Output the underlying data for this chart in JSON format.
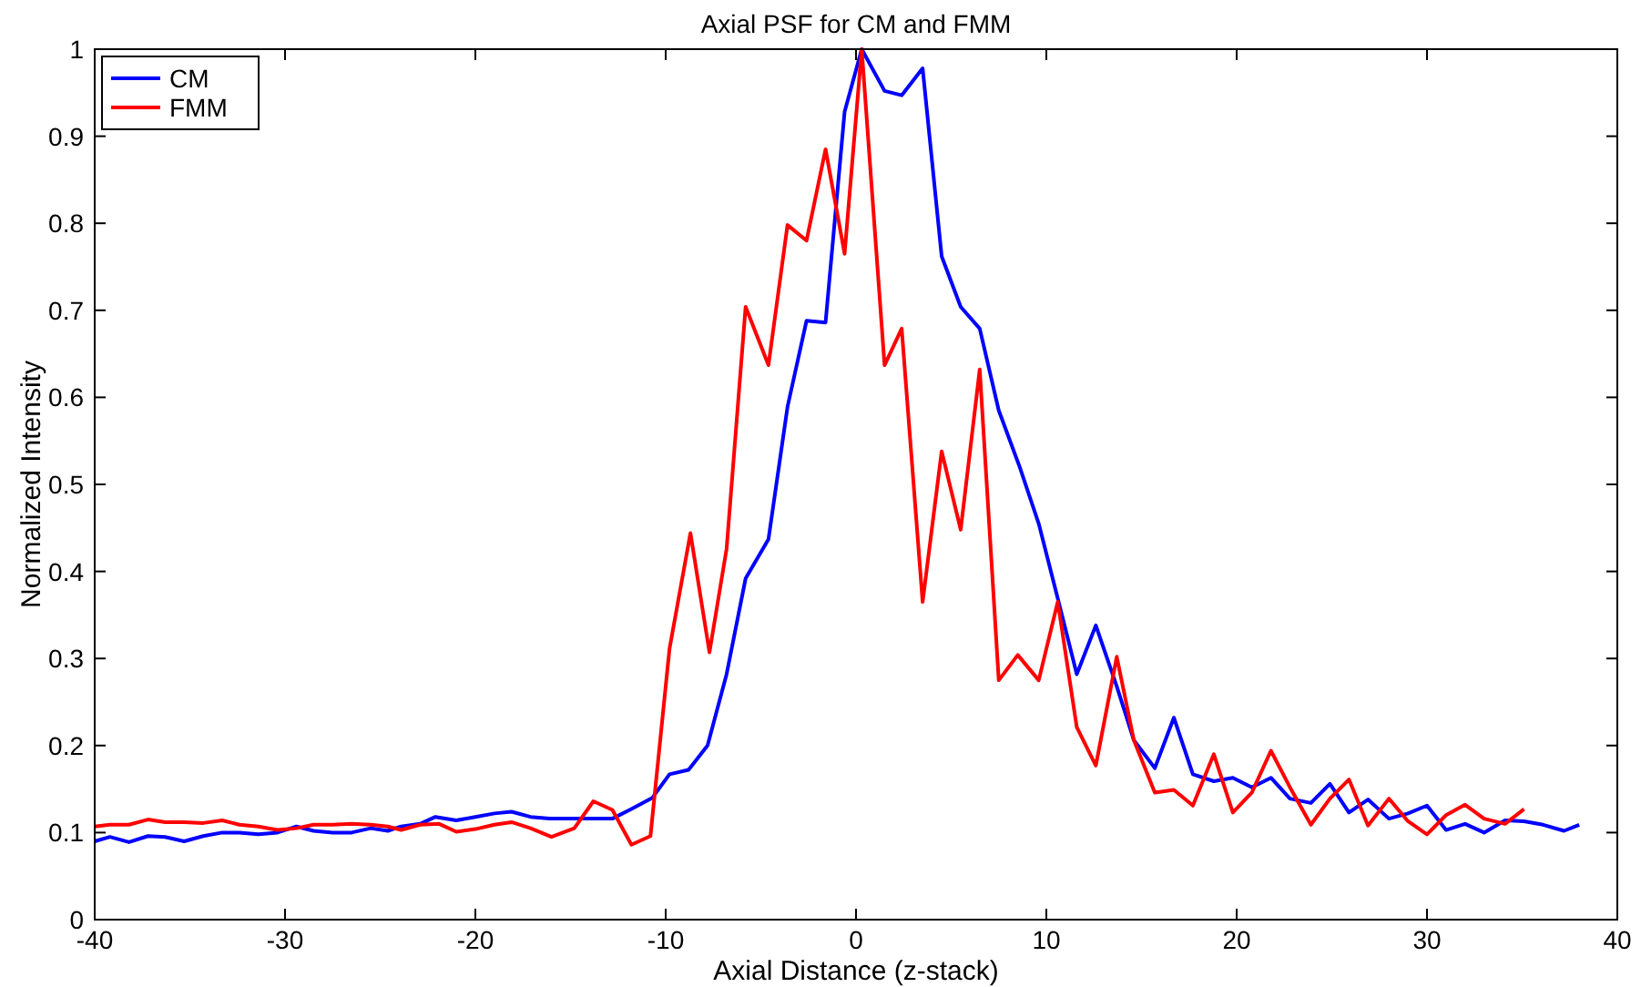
{
  "chart_data": {
    "type": "line",
    "title": "Axial PSF for CM and FMM",
    "xlabel": "Axial Distance (z-stack)",
    "ylabel": "Normalized Intensity",
    "xlim": [
      -40,
      40
    ],
    "xticks": [
      -40,
      -30,
      -20,
      -10,
      0,
      10,
      20,
      30,
      40
    ],
    "ylim": [
      0,
      1
    ],
    "yticks": [
      0,
      0.1,
      0.2,
      0.3,
      0.4,
      0.5,
      0.6,
      0.7,
      0.8,
      0.9,
      1
    ],
    "grid": false,
    "legend": "top left",
    "marker": "none",
    "line_style": "solid",
    "series": [
      {
        "name": "CM",
        "color": "#0000ff",
        "x": [
          -40,
          -39.2,
          -38.2,
          -37.2,
          -36.3,
          -35.3,
          -34.3,
          -33.3,
          -32.4,
          -31.4,
          -30.4,
          -29.4,
          -28.5,
          -27.5,
          -26.5,
          -25.5,
          -24.6,
          -23.9,
          -22.9,
          -22.1,
          -21,
          -20,
          -19,
          -18.1,
          -17.1,
          -16.1,
          -15.1,
          -14.2,
          -12.8,
          -11.8,
          -10.7,
          -9.8,
          -8.8,
          -7.8,
          -6.8,
          -5.8,
          -4.6,
          -3.6,
          -2.6,
          -1.6,
          -0.6,
          0.3,
          1.5,
          2.4,
          3.5,
          4.5,
          5.5,
          6.5,
          7.5,
          8.6,
          9.6,
          10.6,
          11.6,
          12.6,
          13.7,
          14.6,
          15.7,
          16.7,
          17.7,
          18.8,
          19.8,
          20.8,
          21.8,
          22.8,
          23.9,
          24.9,
          25.9,
          26.9,
          28,
          29,
          30,
          31,
          32,
          33,
          34.1,
          35.1,
          36.1,
          37.2,
          38
        ],
        "values": [
          0.09,
          0.095,
          0.089,
          0.096,
          0.095,
          0.09,
          0.096,
          0.1,
          0.1,
          0.098,
          0.1,
          0.107,
          0.102,
          0.1,
          0.1,
          0.105,
          0.102,
          0.107,
          0.11,
          0.118,
          0.114,
          0.118,
          0.122,
          0.124,
          0.118,
          0.116,
          0.116,
          0.116,
          0.116,
          0.127,
          0.14,
          0.167,
          0.172,
          0.2,
          0.282,
          0.392,
          0.437,
          0.589,
          0.688,
          0.686,
          0.928,
          1.0,
          0.952,
          0.947,
          0.978,
          0.762,
          0.704,
          0.679,
          0.585,
          0.52,
          0.455,
          0.369,
          0.282,
          0.338,
          0.268,
          0.206,
          0.174,
          0.232,
          0.167,
          0.159,
          0.163,
          0.152,
          0.163,
          0.139,
          0.134,
          0.156,
          0.123,
          0.138,
          0.116,
          0.122,
          0.131,
          0.103,
          0.11,
          0.1,
          0.114,
          0.113,
          0.109,
          0.102,
          0.109
        ]
      },
      {
        "name": "FMM",
        "color": "#ff0000",
        "x": [
          -40,
          -39.2,
          -38.2,
          -37.2,
          -36.3,
          -35.3,
          -34.3,
          -33.3,
          -32.4,
          -31.4,
          -30.4,
          -29.4,
          -28.5,
          -27.5,
          -26.5,
          -25.5,
          -24.6,
          -23.9,
          -22.9,
          -21.9,
          -21,
          -20,
          -19,
          -18.1,
          -17.1,
          -16,
          -14.8,
          -13.8,
          -12.8,
          -11.8,
          -10.8,
          -9.8,
          -8.7,
          -7.7,
          -6.8,
          -5.8,
          -4.6,
          -3.6,
          -2.6,
          -1.6,
          -0.6,
          0.3,
          1.5,
          2.4,
          3.5,
          4.5,
          5.5,
          6.5,
          7.5,
          8.5,
          9.6,
          10.6,
          11.6,
          12.6,
          13.7,
          14.6,
          15.7,
          16.7,
          17.7,
          18.8,
          19.8,
          20.8,
          21.8,
          22.8,
          23.9,
          24.9,
          25.9,
          26.9,
          28,
          29,
          30,
          31,
          32,
          33,
          34.1,
          35.1
        ],
        "values": [
          0.107,
          0.109,
          0.109,
          0.115,
          0.112,
          0.112,
          0.111,
          0.114,
          0.109,
          0.107,
          0.103,
          0.105,
          0.109,
          0.109,
          0.11,
          0.109,
          0.107,
          0.103,
          0.109,
          0.11,
          0.101,
          0.104,
          0.109,
          0.112,
          0.105,
          0.095,
          0.105,
          0.136,
          0.126,
          0.086,
          0.096,
          0.311,
          0.444,
          0.307,
          0.426,
          0.704,
          0.637,
          0.798,
          0.78,
          0.885,
          0.765,
          1.0,
          0.637,
          0.679,
          0.365,
          0.538,
          0.448,
          0.632,
          0.275,
          0.304,
          0.275,
          0.365,
          0.221,
          0.177,
          0.302,
          0.206,
          0.146,
          0.149,
          0.131,
          0.19,
          0.123,
          0.146,
          0.194,
          0.152,
          0.109,
          0.139,
          0.161,
          0.108,
          0.139,
          0.113,
          0.098,
          0.12,
          0.132,
          0.116,
          0.11,
          0.127
        ]
      }
    ]
  }
}
